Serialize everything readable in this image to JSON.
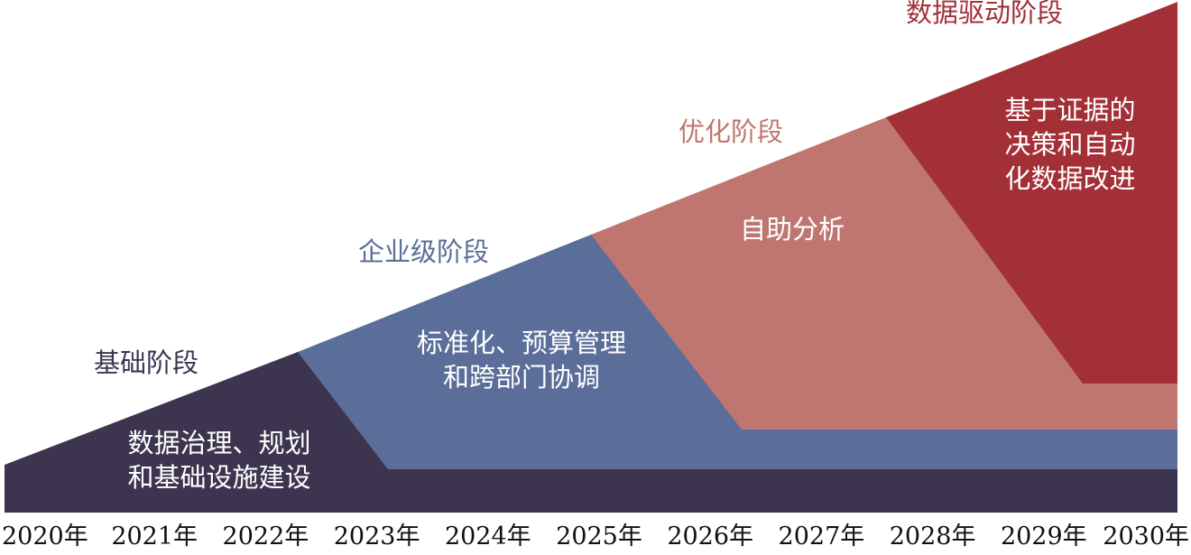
{
  "colors": {
    "foundation": "#3d3550",
    "enterprise": "#5b6e99",
    "optimization": "#bf7670",
    "data_driven": "#a33037"
  },
  "stages": [
    {
      "title": "基础阶段",
      "desc": [
        "数据治理、规划",
        "和基础设施建设"
      ]
    },
    {
      "title": "企业级阶段",
      "desc": [
        "标准化、预算管理",
        "和跨部门协调"
      ]
    },
    {
      "title": "优化阶段",
      "desc": [
        "自助分析"
      ]
    },
    {
      "title": "数据驱动阶段",
      "desc": [
        "基于证据的",
        "决策和自动",
        "化数据改进"
      ]
    }
  ],
  "years": [
    "2020年",
    "2021年",
    "2022年",
    "2023年",
    "2024年",
    "2025年",
    "2026年",
    "2027年",
    "2028年",
    "2029年",
    "2030年"
  ]
}
